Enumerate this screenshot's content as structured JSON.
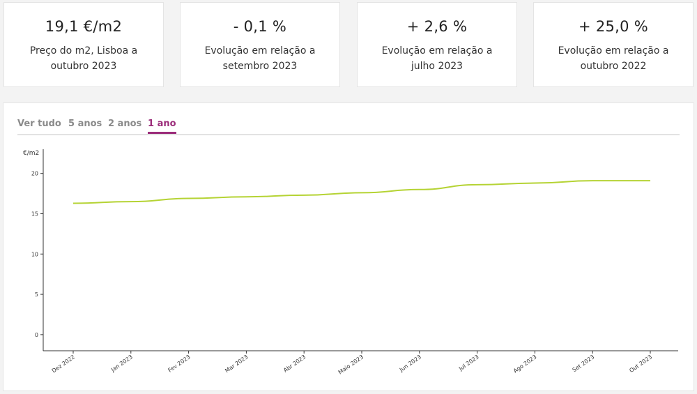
{
  "stats": [
    {
      "value": "19,1 €/m2",
      "label": "Preço do m2, Lisboa a outubro 2023"
    },
    {
      "value": "- 0,1 %",
      "label": "Evolução em relação a setembro 2023"
    },
    {
      "value": "+ 2,6 %",
      "label": "Evolução em relação a julho 2023"
    },
    {
      "value": "+ 25,0 %",
      "label": "Evolução em relação a outubro 2022"
    }
  ],
  "tabs": [
    {
      "label": "Ver tudo",
      "active": false
    },
    {
      "label": "5 anos",
      "active": false
    },
    {
      "label": "2 anos",
      "active": false
    },
    {
      "label": "1 ano",
      "active": true
    }
  ],
  "colors": {
    "line": "#b5d334",
    "accent": "#9b2c7a"
  },
  "chart_data": {
    "type": "line",
    "title": "",
    "xlabel": "",
    "ylabel": "€/m2",
    "ylim": [
      -2,
      23
    ],
    "yticks": [
      0,
      5,
      10,
      15,
      20
    ],
    "grid": false,
    "categories": [
      "Dez 2022",
      "Jan 2023",
      "Fev 2023",
      "Mar 2023",
      "Abr 2023",
      "Maio 2023",
      "Jun 2023",
      "Jul 2023",
      "Ago 2023",
      "Set 2023",
      "Out 2023"
    ],
    "series": [
      {
        "values": [
          16.3,
          16.5,
          16.9,
          17.1,
          17.3,
          17.6,
          18.0,
          18.6,
          18.8,
          19.1,
          19.1
        ]
      }
    ]
  }
}
